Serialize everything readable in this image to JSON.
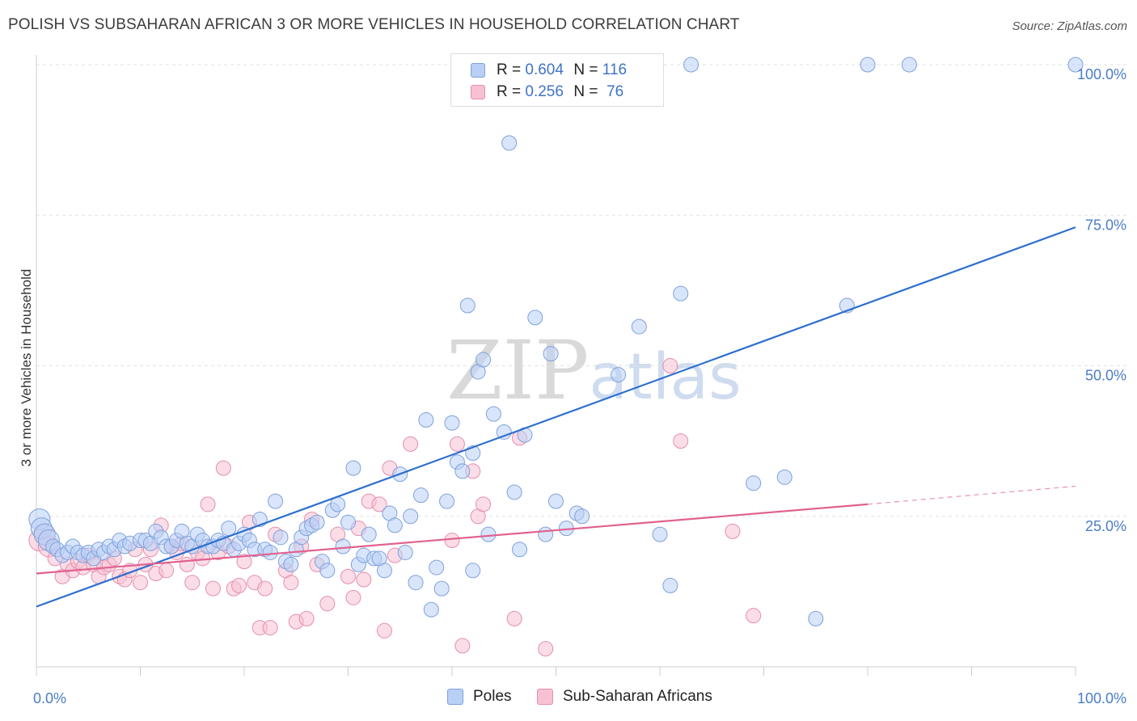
{
  "title": "POLISH VS SUBSAHARAN AFRICAN 3 OR MORE VEHICLES IN HOUSEHOLD CORRELATION CHART",
  "source": "Source: ZipAtlas.com",
  "watermark": {
    "zip": "ZIP",
    "atlas": "atlas"
  },
  "colors": {
    "poles_fill": "#b9cff5",
    "poles_stroke": "#7ea1dc",
    "poles_line": "#2d6fce",
    "ssa_fill": "#f7c1d3",
    "ssa_stroke": "#e58eab",
    "ssa_line": "#e0628f",
    "tick_text": "#4a7cc7",
    "grid": "#e2e2e2"
  },
  "legend_top": {
    "rows": [
      {
        "r_label": "R =",
        "r_value": "0.604",
        "n_label": "N =",
        "n_value": "116"
      },
      {
        "r_label": "R =",
        "r_value": "0.256",
        "n_label": "N =",
        "n_value": "76"
      }
    ]
  },
  "legend_bottom": {
    "poles": "Poles",
    "ssa": "Sub-Saharan Africans"
  },
  "chart_data": {
    "type": "scatter",
    "ylabel": "3 or more Vehicles in Household",
    "xlim": [
      0,
      100
    ],
    "ylim": [
      0,
      100
    ],
    "x_tick_labels": {
      "min": "0.0%",
      "max": "100.0%"
    },
    "y_ticks": [
      {
        "value": 25,
        "label": "25.0%"
      },
      {
        "value": 50,
        "label": "50.0%"
      },
      {
        "value": 75,
        "label": "75.0%"
      },
      {
        "value": 100,
        "label": "100.0%"
      }
    ],
    "grid": true,
    "series": [
      {
        "name": "Poles",
        "r": 0.604,
        "n": 116,
        "trend": {
          "x": [
            0,
            100
          ],
          "y": [
            10,
            73
          ]
        },
        "points": [
          [
            0.3,
            24.5
          ],
          [
            0.5,
            23
          ],
          [
            0.8,
            22
          ],
          [
            1.2,
            21
          ],
          [
            1.6,
            20
          ],
          [
            2,
            19.5
          ],
          [
            2.5,
            18.5
          ],
          [
            3,
            19
          ],
          [
            3.5,
            20
          ],
          [
            4,
            19
          ],
          [
            4.5,
            18.5
          ],
          [
            5,
            19
          ],
          [
            5.5,
            18
          ],
          [
            6,
            19.5
          ],
          [
            6.5,
            19
          ],
          [
            7,
            20
          ],
          [
            7.5,
            19.5
          ],
          [
            8,
            21
          ],
          [
            8.5,
            20
          ],
          [
            9,
            20.5
          ],
          [
            10,
            21
          ],
          [
            10.5,
            21
          ],
          [
            11,
            20.5
          ],
          [
            11.5,
            22.5
          ],
          [
            12,
            21.5
          ],
          [
            12.5,
            20
          ],
          [
            13,
            20
          ],
          [
            13.5,
            21
          ],
          [
            14,
            22.5
          ],
          [
            14.5,
            20.5
          ],
          [
            15,
            20
          ],
          [
            15.5,
            22
          ],
          [
            16,
            21
          ],
          [
            16.5,
            20
          ],
          [
            17,
            20
          ],
          [
            17.5,
            21
          ],
          [
            18,
            20.5
          ],
          [
            18.5,
            23
          ],
          [
            19,
            19.5
          ],
          [
            19.5,
            20.5
          ],
          [
            20,
            22
          ],
          [
            20.5,
            21
          ],
          [
            21,
            19.5
          ],
          [
            21.5,
            24.5
          ],
          [
            22,
            19.5
          ],
          [
            22.5,
            19
          ],
          [
            23,
            27.5
          ],
          [
            23.5,
            21.5
          ],
          [
            24,
            17.5
          ],
          [
            24.5,
            17
          ],
          [
            25,
            19.5
          ],
          [
            25.5,
            21.5
          ],
          [
            26,
            23
          ],
          [
            26.5,
            23.5
          ],
          [
            27,
            24
          ],
          [
            27.5,
            17.5
          ],
          [
            28,
            16
          ],
          [
            28.5,
            26
          ],
          [
            29,
            27
          ],
          [
            29.5,
            20
          ],
          [
            30,
            24
          ],
          [
            30.5,
            33
          ],
          [
            31,
            17
          ],
          [
            31.5,
            18.5
          ],
          [
            32,
            22
          ],
          [
            32.5,
            18
          ],
          [
            33,
            18
          ],
          [
            33.5,
            16
          ],
          [
            34,
            25.5
          ],
          [
            34.5,
            23.5
          ],
          [
            35,
            32
          ],
          [
            35.5,
            19
          ],
          [
            36,
            25
          ],
          [
            36.5,
            14
          ],
          [
            37,
            28.5
          ],
          [
            37.5,
            41
          ],
          [
            38,
            9.5
          ],
          [
            38.5,
            16.5
          ],
          [
            39,
            13
          ],
          [
            39.5,
            27.5
          ],
          [
            40,
            40.5
          ],
          [
            40.5,
            34
          ],
          [
            41,
            32.5
          ],
          [
            41.5,
            60
          ],
          [
            42,
            16
          ],
          [
            42,
            35.5
          ],
          [
            42.5,
            49
          ],
          [
            43,
            51
          ],
          [
            43.5,
            22
          ],
          [
            44,
            42
          ],
          [
            45,
            39
          ],
          [
            45.5,
            87
          ],
          [
            46,
            29
          ],
          [
            46.5,
            19.5
          ],
          [
            47,
            38.5
          ],
          [
            48,
            58
          ],
          [
            49,
            22
          ],
          [
            49.5,
            52
          ],
          [
            50,
            27.5
          ],
          [
            51,
            23
          ],
          [
            52,
            25.5
          ],
          [
            52.5,
            25
          ],
          [
            56,
            48.5
          ],
          [
            58,
            56.5
          ],
          [
            60,
            22
          ],
          [
            61,
            13.5
          ],
          [
            62,
            62
          ],
          [
            63,
            100
          ],
          [
            69,
            30.5
          ],
          [
            72,
            31.5
          ],
          [
            75,
            8
          ],
          [
            78,
            60
          ],
          [
            80,
            100
          ],
          [
            84,
            100
          ],
          [
            100,
            100
          ]
        ]
      },
      {
        "name": "Sub-Saharan Africans",
        "r": 0.256,
        "n": 76,
        "trend": {
          "x": [
            0,
            80
          ],
          "y": [
            15.5,
            27
          ]
        },
        "trend_dashed": {
          "x": [
            80,
            100
          ],
          "y": [
            27,
            30
          ]
        },
        "points": [
          [
            0.3,
            21
          ],
          [
            0.8,
            22
          ],
          [
            1.2,
            20
          ],
          [
            1.8,
            18
          ],
          [
            2.5,
            15
          ],
          [
            3,
            17
          ],
          [
            3.5,
            16
          ],
          [
            4,
            17.5
          ],
          [
            4.5,
            16.5
          ],
          [
            5,
            18.5
          ],
          [
            5.5,
            17
          ],
          [
            6,
            15
          ],
          [
            6.5,
            16.5
          ],
          [
            7,
            17
          ],
          [
            7.5,
            18
          ],
          [
            8,
            15
          ],
          [
            8.5,
            14.5
          ],
          [
            9,
            16
          ],
          [
            9.5,
            19.5
          ],
          [
            10,
            14
          ],
          [
            10.5,
            17
          ],
          [
            11,
            19.5
          ],
          [
            11.5,
            15.5
          ],
          [
            12,
            23.5
          ],
          [
            12.5,
            16
          ],
          [
            13,
            20
          ],
          [
            13.5,
            19
          ],
          [
            14,
            20.5
          ],
          [
            14.5,
            17
          ],
          [
            15,
            14
          ],
          [
            15.5,
            19
          ],
          [
            16,
            18
          ],
          [
            16.5,
            27
          ],
          [
            17,
            13
          ],
          [
            17.5,
            19
          ],
          [
            18,
            33
          ],
          [
            18.5,
            20
          ],
          [
            19,
            13
          ],
          [
            19.5,
            13.5
          ],
          [
            20,
            17.5
          ],
          [
            20.5,
            24
          ],
          [
            21,
            14
          ],
          [
            21.5,
            6.5
          ],
          [
            22,
            13
          ],
          [
            22.5,
            6.5
          ],
          [
            23,
            22
          ],
          [
            24,
            16
          ],
          [
            24.5,
            14
          ],
          [
            25,
            7.5
          ],
          [
            25.5,
            20
          ],
          [
            26,
            8
          ],
          [
            26.5,
            24.5
          ],
          [
            27,
            17
          ],
          [
            28,
            10.5
          ],
          [
            29,
            22
          ],
          [
            30,
            15
          ],
          [
            30.5,
            11.5
          ],
          [
            31,
            23
          ],
          [
            31.5,
            14.5
          ],
          [
            32,
            27.5
          ],
          [
            33,
            27
          ],
          [
            33.5,
            6
          ],
          [
            34,
            33
          ],
          [
            34.5,
            18.5
          ],
          [
            36,
            37
          ],
          [
            40,
            21
          ],
          [
            40.5,
            37
          ],
          [
            41,
            3.5
          ],
          [
            42,
            32.5
          ],
          [
            42.5,
            25
          ],
          [
            43,
            27
          ],
          [
            46,
            8
          ],
          [
            46.5,
            38
          ],
          [
            49,
            3
          ],
          [
            61,
            50
          ],
          [
            62,
            37.5
          ],
          [
            67,
            22.5
          ],
          [
            69,
            8.5
          ]
        ]
      }
    ]
  }
}
